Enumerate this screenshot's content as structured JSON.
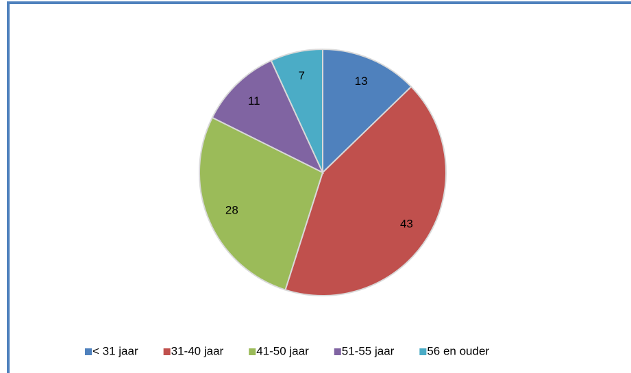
{
  "chart_data": {
    "type": "pie",
    "categories": [
      "< 31 jaar",
      "31-40 jaar",
      "41-50 jaar",
      "51-55 jaar",
      "56 en ouder"
    ],
    "values": [
      13,
      43,
      28,
      11,
      7
    ],
    "colors": [
      "#4f81bd",
      "#c0504d",
      "#9bbb59",
      "#8064a2",
      "#4bacc6"
    ],
    "legend": "bottom"
  }
}
